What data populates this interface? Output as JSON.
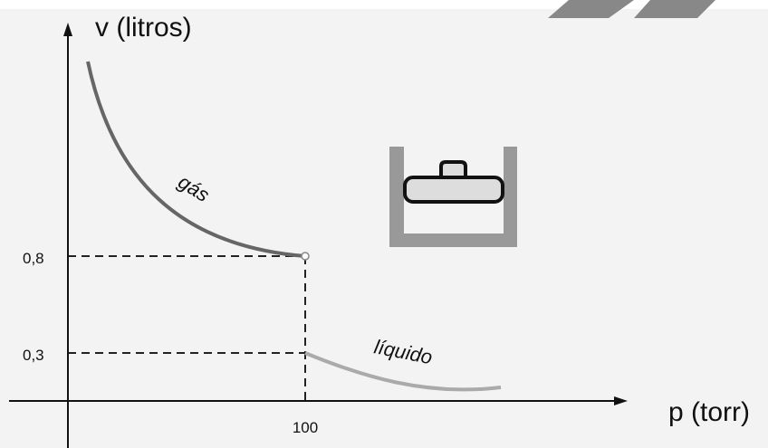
{
  "axes": {
    "y_label": "v (litros)",
    "x_label": "p (torr)"
  },
  "ticks": {
    "y": [
      "0,8",
      "0,3"
    ],
    "x": [
      "100"
    ]
  },
  "curves": {
    "gas": "gás",
    "liquid": "líquido"
  }
}
